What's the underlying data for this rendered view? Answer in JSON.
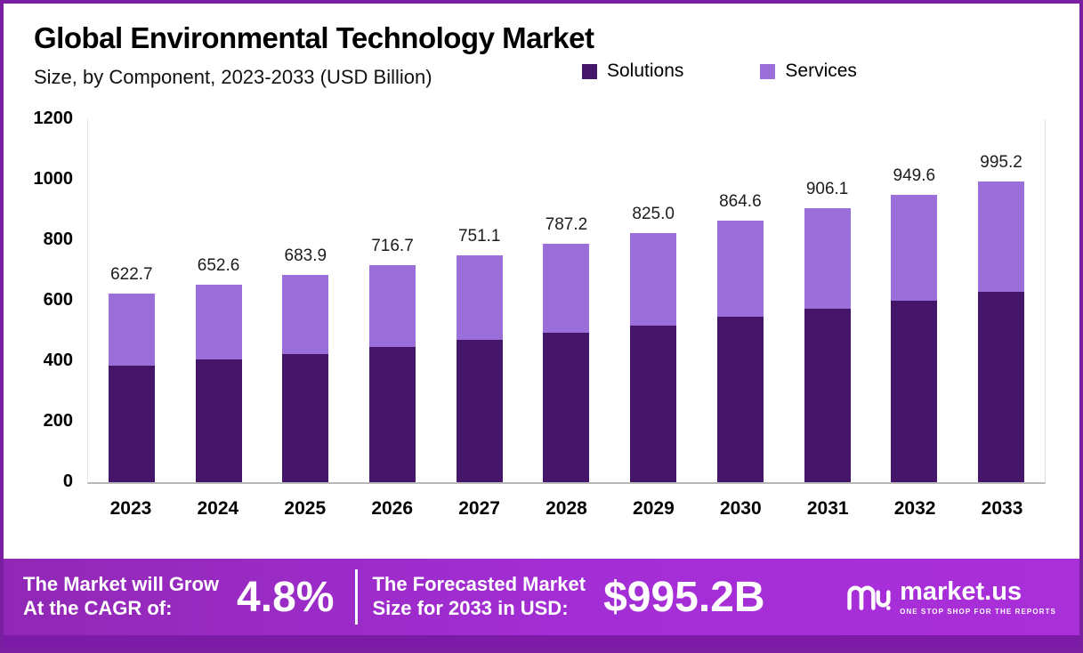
{
  "page": {
    "title": "Global Environmental Technology Market",
    "subtitle": "Size, by Component, 2023-2033 (USD Billion)"
  },
  "legend": {
    "items": [
      {
        "label": "Solutions"
      },
      {
        "label": "Services"
      }
    ]
  },
  "chart_data": {
    "type": "bar",
    "stacked": true,
    "title": "Global Environmental Technology Market Size, by Component, 2023-2033 (USD Billion)",
    "xlabel": "",
    "ylabel": "",
    "ylim": [
      0,
      1200
    ],
    "y_ticks": [
      1200,
      1000,
      800,
      600,
      400,
      200,
      0
    ],
    "grid": false,
    "legend_position": "top",
    "categories": [
      "2023",
      "2024",
      "2025",
      "2026",
      "2027",
      "2028",
      "2029",
      "2030",
      "2031",
      "2032",
      "2033"
    ],
    "series": [
      {
        "name": "Solutions",
        "color": "#441569",
        "values": [
          385,
          405,
          425,
          447,
          470,
          494,
          519,
          546,
          573,
          601,
          630
        ]
      },
      {
        "name": "Services",
        "color": "#9b6fd9",
        "values": [
          237.7,
          247.6,
          258.9,
          269.7,
          281.1,
          293.2,
          306.0,
          318.6,
          333.1,
          348.6,
          365.2
        ]
      }
    ],
    "totals": [
      622.7,
      652.6,
      683.9,
      716.7,
      751.1,
      787.2,
      825.0,
      864.6,
      906.1,
      949.6,
      995.2
    ],
    "total_labels": [
      "622.7",
      "652.6",
      "683.9",
      "716.7",
      "751.1",
      "787.2",
      "825.0",
      "864.6",
      "906.1",
      "949.6",
      "995.2"
    ]
  },
  "banner": {
    "cagr_label_line1": "The Market will Grow",
    "cagr_label_line2": "At the CAGR of:",
    "cagr_value": "4.8%",
    "forecast_label_line1": "The Forecasted Market",
    "forecast_label_line2": "Size for 2033 in USD:",
    "forecast_value": "$995.2B",
    "brand_name": "market.us",
    "brand_tagline": "ONE STOP SHOP FOR THE REPORTS"
  },
  "colors": {
    "solutions": "#441569",
    "services": "#9b6fd9",
    "border": "#7b1fa2",
    "banner_gradient_start": "#9128b5",
    "banner_gradient_end": "#a92fd9",
    "footer_strip": "#7c1ba6"
  }
}
